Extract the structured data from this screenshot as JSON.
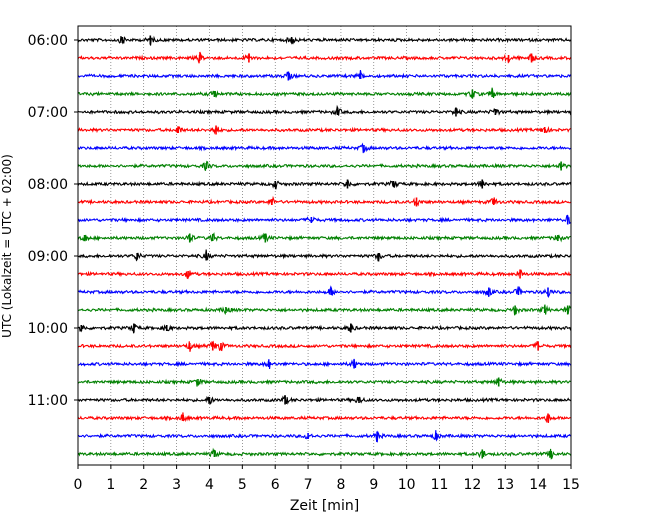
{
  "chart_data": {
    "type": "line",
    "title": "",
    "xlabel": "Zeit  [min]",
    "ylabel": "UTC (Lokalzeit = UTC + 02:00)",
    "xlim": [
      0,
      15
    ],
    "x_ticks": [
      "0",
      "1",
      "2",
      "3",
      "4",
      "5",
      "6",
      "7",
      "8",
      "9",
      "10",
      "11",
      "12",
      "13",
      "14",
      "15"
    ],
    "y_tick_labels": [
      "06:00",
      "07:00",
      "08:00",
      "09:00",
      "10:00",
      "11:00"
    ],
    "grid": "vertical dotted",
    "trace_interval_minutes": 15,
    "traces": [
      {
        "start": "06:00",
        "color": "#000000",
        "events": [
          1.35,
          2.2,
          6.5
        ]
      },
      {
        "start": "06:15",
        "color": "#ff0000",
        "events": [
          3.7,
          5.2,
          13.1,
          13.8
        ]
      },
      {
        "start": "06:30",
        "color": "#0000ff",
        "events": [
          8.6,
          6.4
        ]
      },
      {
        "start": "06:45",
        "color": "#008000",
        "events": [
          4.15,
          12.0,
          12.6
        ]
      },
      {
        "start": "07:00",
        "color": "#000000",
        "events": [
          7.9,
          11.5,
          12.7
        ]
      },
      {
        "start": "07:15",
        "color": "#ff0000",
        "events": [
          3.05,
          4.2,
          14.2
        ]
      },
      {
        "start": "07:30",
        "color": "#0000ff",
        "events": [
          8.7
        ]
      },
      {
        "start": "07:45",
        "color": "#008000",
        "events": [
          3.9,
          14.7
        ]
      },
      {
        "start": "08:00",
        "color": "#000000",
        "events": [
          6.0,
          8.2,
          9.6,
          12.3
        ]
      },
      {
        "start": "08:15",
        "color": "#ff0000",
        "events": [
          5.9,
          10.3,
          12.65
        ]
      },
      {
        "start": "08:30",
        "color": "#0000ff",
        "events": [
          7.1,
          14.9
        ]
      },
      {
        "start": "08:45",
        "color": "#008000",
        "events": [
          0.2,
          3.4,
          4.1,
          5.7,
          14.6
        ]
      },
      {
        "start": "09:00",
        "color": "#000000",
        "events": [
          1.8,
          3.9,
          9.15
        ]
      },
      {
        "start": "09:15",
        "color": "#ff0000",
        "events": [
          3.35,
          13.45
        ]
      },
      {
        "start": "09:30",
        "color": "#0000ff",
        "events": [
          7.7,
          12.5,
          13.4,
          14.3
        ]
      },
      {
        "start": "09:45",
        "color": "#008000",
        "events": [
          4.5,
          13.3,
          14.2,
          14.9
        ]
      },
      {
        "start": "10:00",
        "color": "#000000",
        "events": [
          0.1,
          1.7,
          2.7,
          8.3
        ]
      },
      {
        "start": "10:15",
        "color": "#ff0000",
        "events": [
          3.4,
          4.1,
          4.35,
          14.0
        ]
      },
      {
        "start": "10:30",
        "color": "#0000ff",
        "events": [
          5.8,
          8.4
        ]
      },
      {
        "start": "10:45",
        "color": "#008000",
        "events": [
          3.65,
          12.8
        ]
      },
      {
        "start": "11:00",
        "color": "#000000",
        "events": [
          4.0,
          6.3,
          8.55
        ]
      },
      {
        "start": "11:15",
        "color": "#ff0000",
        "events": [
          3.2,
          14.3
        ]
      },
      {
        "start": "11:30",
        "color": "#0000ff",
        "events": [
          7.0,
          9.1,
          10.9
        ]
      },
      {
        "start": "11:45",
        "color": "#008000",
        "events": [
          4.15,
          12.3,
          14.4
        ]
      }
    ]
  }
}
